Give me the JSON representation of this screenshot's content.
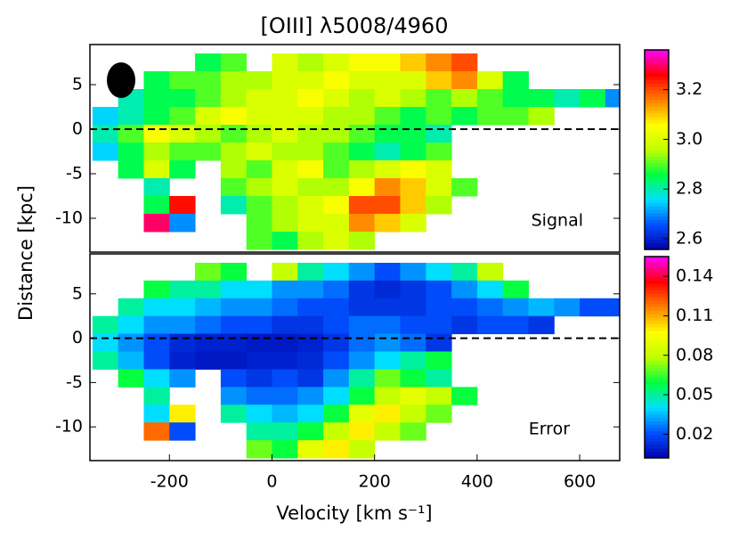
{
  "chart_data": [
    {
      "type": "heatmap",
      "title": "[OIII] λ5008/4960",
      "ylabel": "Distance [kpc]",
      "annotation": "Signal",
      "x": [
        -325,
        -275,
        -225,
        -175,
        -125,
        -75,
        -25,
        25,
        75,
        125,
        175,
        225,
        275,
        325,
        375,
        425,
        475,
        525,
        575,
        625,
        675
      ],
      "y": [
        7.5,
        5.5,
        3.5,
        1.5,
        -0.5,
        -2.5,
        -4.5,
        -6.5,
        -8.5,
        -10.5,
        -12.5
      ],
      "z": [
        [
          null,
          null,
          null,
          null,
          2.85,
          2.9,
          null,
          3.0,
          2.95,
          3.0,
          3.05,
          3.05,
          3.1,
          3.15,
          3.2,
          null,
          null,
          null,
          null,
          null,
          null
        ],
        [
          null,
          null,
          2.85,
          2.9,
          2.9,
          2.95,
          2.95,
          3.0,
          3.0,
          3.05,
          3.0,
          3.0,
          3.0,
          3.1,
          3.15,
          3.0,
          2.85,
          null,
          null,
          null,
          null
        ],
        [
          null,
          2.8,
          2.85,
          2.85,
          2.9,
          2.95,
          3.0,
          3.0,
          3.05,
          3.0,
          2.95,
          3.0,
          2.95,
          2.9,
          2.95,
          2.9,
          2.85,
          2.85,
          2.8,
          2.85,
          2.7
        ],
        [
          2.75,
          2.8,
          2.85,
          2.9,
          3.0,
          3.05,
          3.0,
          3.0,
          3.0,
          2.95,
          2.95,
          2.9,
          2.85,
          2.9,
          2.85,
          2.9,
          2.9,
          2.95,
          null,
          null,
          null
        ],
        [
          2.8,
          2.9,
          3.05,
          3.0,
          2.95,
          2.9,
          2.95,
          3.0,
          2.95,
          2.95,
          2.9,
          2.85,
          2.85,
          2.8,
          null,
          null,
          null,
          null,
          null,
          null,
          null
        ],
        [
          2.75,
          2.85,
          2.95,
          2.9,
          2.9,
          2.95,
          3.0,
          2.95,
          2.95,
          2.9,
          2.85,
          2.8,
          2.85,
          2.9,
          null,
          null,
          null,
          null,
          null,
          null,
          null
        ],
        [
          null,
          2.85,
          3.0,
          2.85,
          null,
          2.95,
          2.9,
          3.0,
          3.05,
          2.9,
          2.95,
          3.0,
          3.05,
          3.0,
          null,
          null,
          null,
          null,
          null,
          null,
          null
        ],
        [
          null,
          null,
          2.8,
          null,
          null,
          2.9,
          2.95,
          3.0,
          2.95,
          2.95,
          3.05,
          3.15,
          3.1,
          3.0,
          2.9,
          null,
          null,
          null,
          null,
          null,
          null
        ],
        [
          null,
          null,
          2.85,
          3.25,
          null,
          2.8,
          2.9,
          2.95,
          3.0,
          3.05,
          3.2,
          3.2,
          3.1,
          2.95,
          null,
          null,
          null,
          null,
          null,
          null,
          null
        ],
        [
          null,
          null,
          3.3,
          2.7,
          null,
          null,
          2.9,
          2.95,
          3.0,
          3.0,
          3.15,
          3.1,
          3.0,
          null,
          null,
          null,
          null,
          null,
          null,
          null,
          null
        ],
        [
          null,
          null,
          null,
          null,
          null,
          null,
          2.9,
          2.85,
          2.95,
          3.0,
          2.95,
          null,
          null,
          null,
          null,
          null,
          null,
          null,
          null,
          null,
          null
        ]
      ],
      "xlim": [
        -355,
        678
      ],
      "ylim": [
        -13.8,
        9.5
      ],
      "yticks": [
        -10,
        -5,
        0,
        5
      ],
      "hline": 0,
      "clim": [
        2.557,
        3.36
      ],
      "cticks": [
        2.6,
        2.8,
        {
          "value": 3,
          "label": "3.0"
        },
        3.2
      ],
      "colormap": [
        "#0000aa",
        "#0050ff",
        "#00e0ff",
        "#00ff40",
        "#c0ff00",
        "#ffff00",
        "#ff8000",
        "#ff0000",
        "#ff00ff"
      ]
    },
    {
      "type": "heatmap",
      "xlabel": "Velocity [km s⁻¹]",
      "annotation": "Error",
      "x": [
        -325,
        -275,
        -225,
        -175,
        -125,
        -75,
        -25,
        25,
        75,
        125,
        175,
        225,
        275,
        325,
        375,
        425,
        475,
        525,
        575,
        625,
        675
      ],
      "y": [
        7.5,
        5.5,
        3.5,
        1.5,
        -0.5,
        -2.5,
        -4.5,
        -6.5,
        -8.5,
        -10.5,
        -12.5
      ],
      "z": [
        [
          null,
          null,
          null,
          null,
          0.07,
          0.06,
          null,
          0.08,
          0.05,
          0.04,
          0.03,
          0.02,
          0.03,
          0.04,
          0.05,
          0.08,
          null,
          null,
          null,
          null,
          null
        ],
        [
          null,
          null,
          0.06,
          0.05,
          0.05,
          0.04,
          0.04,
          0.03,
          0.03,
          0.025,
          0.015,
          0.012,
          0.015,
          0.02,
          0.03,
          0.04,
          0.06,
          null,
          null,
          null,
          null
        ],
        [
          null,
          0.05,
          0.04,
          0.04,
          0.035,
          0.03,
          0.03,
          0.025,
          0.02,
          0.02,
          0.015,
          0.015,
          0.015,
          0.02,
          0.02,
          0.025,
          0.03,
          0.035,
          0.03,
          0.02,
          0.02
        ],
        [
          0.05,
          0.04,
          0.03,
          0.03,
          0.025,
          0.02,
          0.02,
          0.015,
          0.015,
          0.02,
          0.025,
          0.025,
          0.02,
          0.02,
          0.015,
          0.02,
          0.02,
          0.015,
          null,
          null,
          null
        ],
        [
          0.04,
          0.03,
          0.02,
          0.012,
          0.01,
          0.01,
          0.008,
          0.008,
          0.01,
          0.015,
          0.025,
          0.03,
          0.025,
          0.015,
          null,
          null,
          null,
          null,
          null,
          null,
          null
        ],
        [
          0.05,
          0.035,
          0.02,
          0.01,
          0.008,
          0.008,
          0.01,
          0.01,
          0.012,
          0.02,
          0.03,
          0.04,
          0.05,
          0.06,
          null,
          null,
          null,
          null,
          null,
          null,
          null
        ],
        [
          null,
          0.06,
          0.04,
          0.03,
          null,
          0.02,
          0.015,
          0.02,
          0.015,
          0.03,
          0.05,
          0.07,
          0.06,
          0.05,
          null,
          null,
          null,
          null,
          null,
          null,
          null
        ],
        [
          null,
          null,
          0.05,
          null,
          null,
          0.03,
          0.025,
          0.025,
          0.03,
          0.04,
          0.06,
          0.08,
          0.09,
          0.08,
          0.06,
          null,
          null,
          null,
          null,
          null,
          null
        ],
        [
          null,
          null,
          0.04,
          0.1,
          null,
          0.05,
          0.04,
          0.035,
          0.04,
          0.06,
          0.09,
          0.1,
          0.08,
          0.07,
          null,
          null,
          null,
          null,
          null,
          null,
          null
        ],
        [
          null,
          null,
          0.12,
          0.02,
          null,
          null,
          0.05,
          0.05,
          0.06,
          0.08,
          0.1,
          0.08,
          0.07,
          null,
          null,
          null,
          null,
          null,
          null,
          null,
          null
        ],
        [
          null,
          null,
          null,
          null,
          null,
          null,
          0.07,
          0.06,
          0.09,
          0.1,
          0.08,
          null,
          null,
          null,
          null,
          null,
          null,
          null,
          null,
          null,
          null
        ]
      ],
      "xlim": [
        -355,
        678
      ],
      "ylim": [
        -13.8,
        9.5
      ],
      "xticks": [
        -200,
        0,
        200,
        400,
        600
      ],
      "yticks": [
        -10,
        -5,
        0,
        5
      ],
      "hline": 0,
      "clim": [
        0.002,
        0.155
      ],
      "cticks": [
        0.02,
        0.05,
        0.08,
        0.11,
        0.14
      ],
      "colormap": [
        "#0000aa",
        "#0050ff",
        "#00e0ff",
        "#00ff40",
        "#c0ff00",
        "#ffff00",
        "#ff8000",
        "#ff0000",
        "#ff00ff"
      ]
    }
  ]
}
